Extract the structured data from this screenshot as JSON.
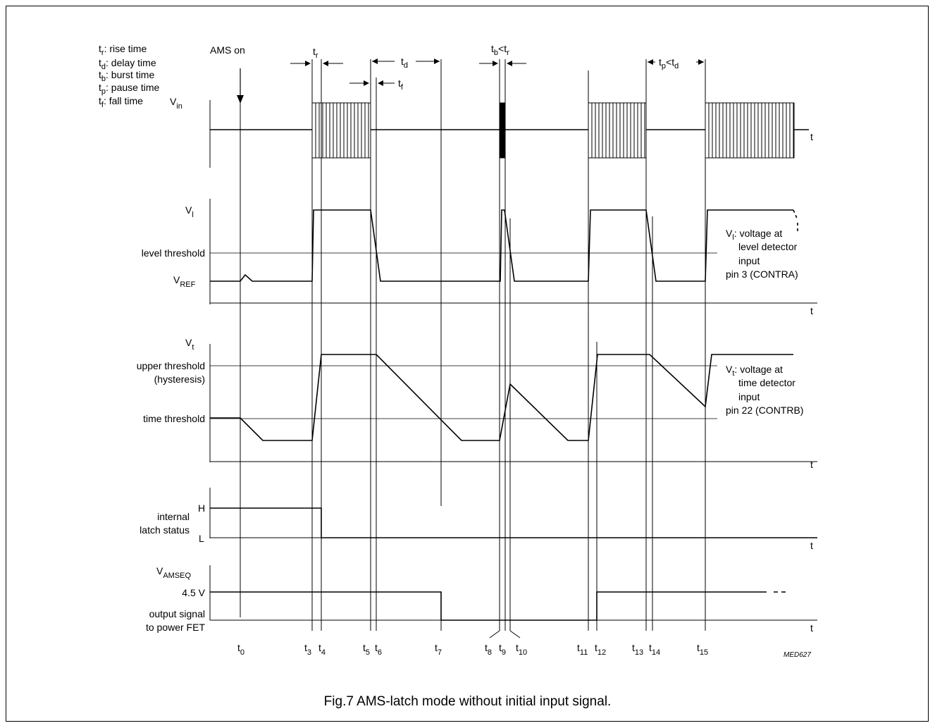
{
  "caption": "Fig.7  AMS-latch mode without initial input signal.",
  "figure_code": "MED627",
  "legend": [
    {
      "sym": "t",
      "sub": "r",
      "text": ": rise time"
    },
    {
      "sym": "t",
      "sub": "d",
      "text": ": delay time"
    },
    {
      "sym": "t",
      "sub": "b",
      "text": ": burst time"
    },
    {
      "sym": "t",
      "sub": "p",
      "text": ": pause time"
    },
    {
      "sym": "t",
      "sub": "f",
      "text": ": fall time"
    }
  ],
  "ams_on": "AMS on",
  "t_axis": "t",
  "top_labels": {
    "tr": {
      "sym": "t",
      "sub": "r"
    },
    "td": {
      "sym": "t",
      "sub": "d"
    },
    "tf": {
      "sym": "t",
      "sub": "f"
    },
    "tb_lt_tr": {
      "s1": "t",
      "b1": "b",
      "mid": "<t",
      "b2": "r"
    },
    "tp_lt_td": {
      "s1": "t",
      "b1": "p",
      "mid": "<t",
      "b2": "d"
    }
  },
  "panel_vin": {
    "sym": "V",
    "sub": "in"
  },
  "panel_vl": {
    "sym": "V",
    "sub": "l",
    "level_threshold": "level threshold",
    "vref_sym": "V",
    "vref_sub": "REF",
    "note": [
      "voltage at",
      "level detector",
      "input",
      "pin 3 (CONTRA)"
    ]
  },
  "panel_vt": {
    "sym": "V",
    "sub": "t",
    "upper_threshold": "upper threshold",
    "hysteresis": "(hysteresis)",
    "time_threshold": "time threshold",
    "note": [
      "voltage at",
      "time detector",
      "input",
      "pin 22 (CONTRB)"
    ]
  },
  "panel_latch": {
    "H": "H",
    "L": "L",
    "label1": "internal",
    "label2": "latch status"
  },
  "panel_ams": {
    "sym": "V",
    "sub": "AMSEQ",
    "v45": "4.5 V",
    "label1": "output signal",
    "label2": "to power FET"
  },
  "time_labels": [
    "0",
    "3",
    "4",
    "5",
    "6",
    "7",
    "8",
    "9",
    "10",
    "11",
    "12",
    "13",
    "14",
    "15"
  ]
}
